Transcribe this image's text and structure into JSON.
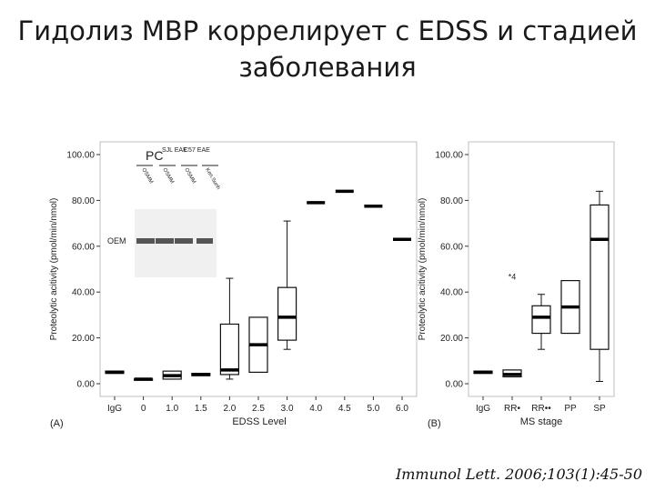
{
  "slide": {
    "title_line1": "Гидолиз MBP коррелирует с EDSS и стадией",
    "title_line2": "заболевания",
    "citation": "Immunol Lett. 2006;103(1):45-50"
  },
  "chart_data": [
    {
      "type": "box",
      "panel_label": "(A)",
      "xlabel": "EDSS Level",
      "ylabel": "Proteolytic acitivity (pmol/min/nmol)",
      "ylim": [
        0,
        100
      ],
      "yticks": [
        "0.00",
        "20.00",
        "40.00",
        "60.00",
        "80.00",
        "100.00"
      ],
      "categories": [
        "IgG",
        "0",
        "1.0",
        "1.5",
        "2.0",
        "2.5",
        "3.0",
        "4.0",
        "4.5",
        "5.0",
        "6.0"
      ],
      "boxes": [
        {
          "category": "IgG",
          "min": 4.5,
          "q1": 4.5,
          "median": 5,
          "q3": 5.5,
          "max": 5.5
        },
        {
          "category": "0",
          "min": 1.5,
          "q1": 1.5,
          "median": 2,
          "q3": 2,
          "max": 2
        },
        {
          "category": "1.0",
          "min": 2,
          "q1": 2,
          "median": 3.5,
          "q3": 5.5,
          "max": 5.5
        },
        {
          "category": "1.5",
          "min": 3.5,
          "q1": 3.5,
          "median": 4,
          "q3": 4.5,
          "max": 4.5
        },
        {
          "category": "2.0",
          "min": 2,
          "q1": 4,
          "median": 6,
          "q3": 26,
          "max": 46
        },
        {
          "category": "2.5",
          "min": 5,
          "q1": 5,
          "median": 17,
          "q3": 29,
          "max": 29
        },
        {
          "category": "3.0",
          "min": 15,
          "q1": 19,
          "median": 29,
          "q3": 42,
          "max": 71
        },
        {
          "category": "4.0",
          "min": 79,
          "q1": 79,
          "median": 79,
          "q3": 79,
          "max": 79
        },
        {
          "category": "4.5",
          "min": 84,
          "q1": 84,
          "median": 84,
          "q3": 84,
          "max": 84
        },
        {
          "category": "5.0",
          "min": 77.5,
          "q1": 77.5,
          "median": 77.5,
          "q3": 77.5,
          "max": 77.5
        },
        {
          "category": "6.0",
          "min": 63,
          "q1": 63,
          "median": 63,
          "q3": 63,
          "max": 63
        }
      ],
      "inset": {
        "title_pc": "PC",
        "group_labels": [
          "SJL EAE",
          "C57 EAE"
        ],
        "lane_labels": [
          "OSMM",
          "OSMM",
          "OSMM",
          "Ken.Sunh"
        ],
        "band_label": "OEM"
      }
    },
    {
      "type": "box",
      "panel_label": "(B)",
      "xlabel": "MS stage",
      "ylabel": "Proteolytic acitivity (pmol/min/nmol)",
      "ylim": [
        0,
        100
      ],
      "yticks": [
        "0.00",
        "20.00",
        "40.00",
        "60.00",
        "80.00",
        "100.00"
      ],
      "categories": [
        "IgG",
        "RR•",
        "RR••",
        "PP",
        "SP"
      ],
      "boxes": [
        {
          "category": "IgG",
          "min": 4.5,
          "q1": 4.5,
          "median": 5,
          "q3": 5.5,
          "max": 5.5
        },
        {
          "category": "RR•",
          "min": 3,
          "q1": 3,
          "median": 4,
          "q3": 6,
          "max": 6
        },
        {
          "category": "RR••",
          "min": 15,
          "q1": 22,
          "median": 29,
          "q3": 34,
          "max": 39
        },
        {
          "category": "PP",
          "min": 22,
          "q1": 22,
          "median": 33.5,
          "q3": 45,
          "max": 45
        },
        {
          "category": "SP",
          "min": 1,
          "q1": 15,
          "median": 63,
          "q3": 78,
          "max": 84
        }
      ],
      "outliers": [
        {
          "category": "RR•",
          "value": 47,
          "label": "*4"
        }
      ]
    }
  ]
}
